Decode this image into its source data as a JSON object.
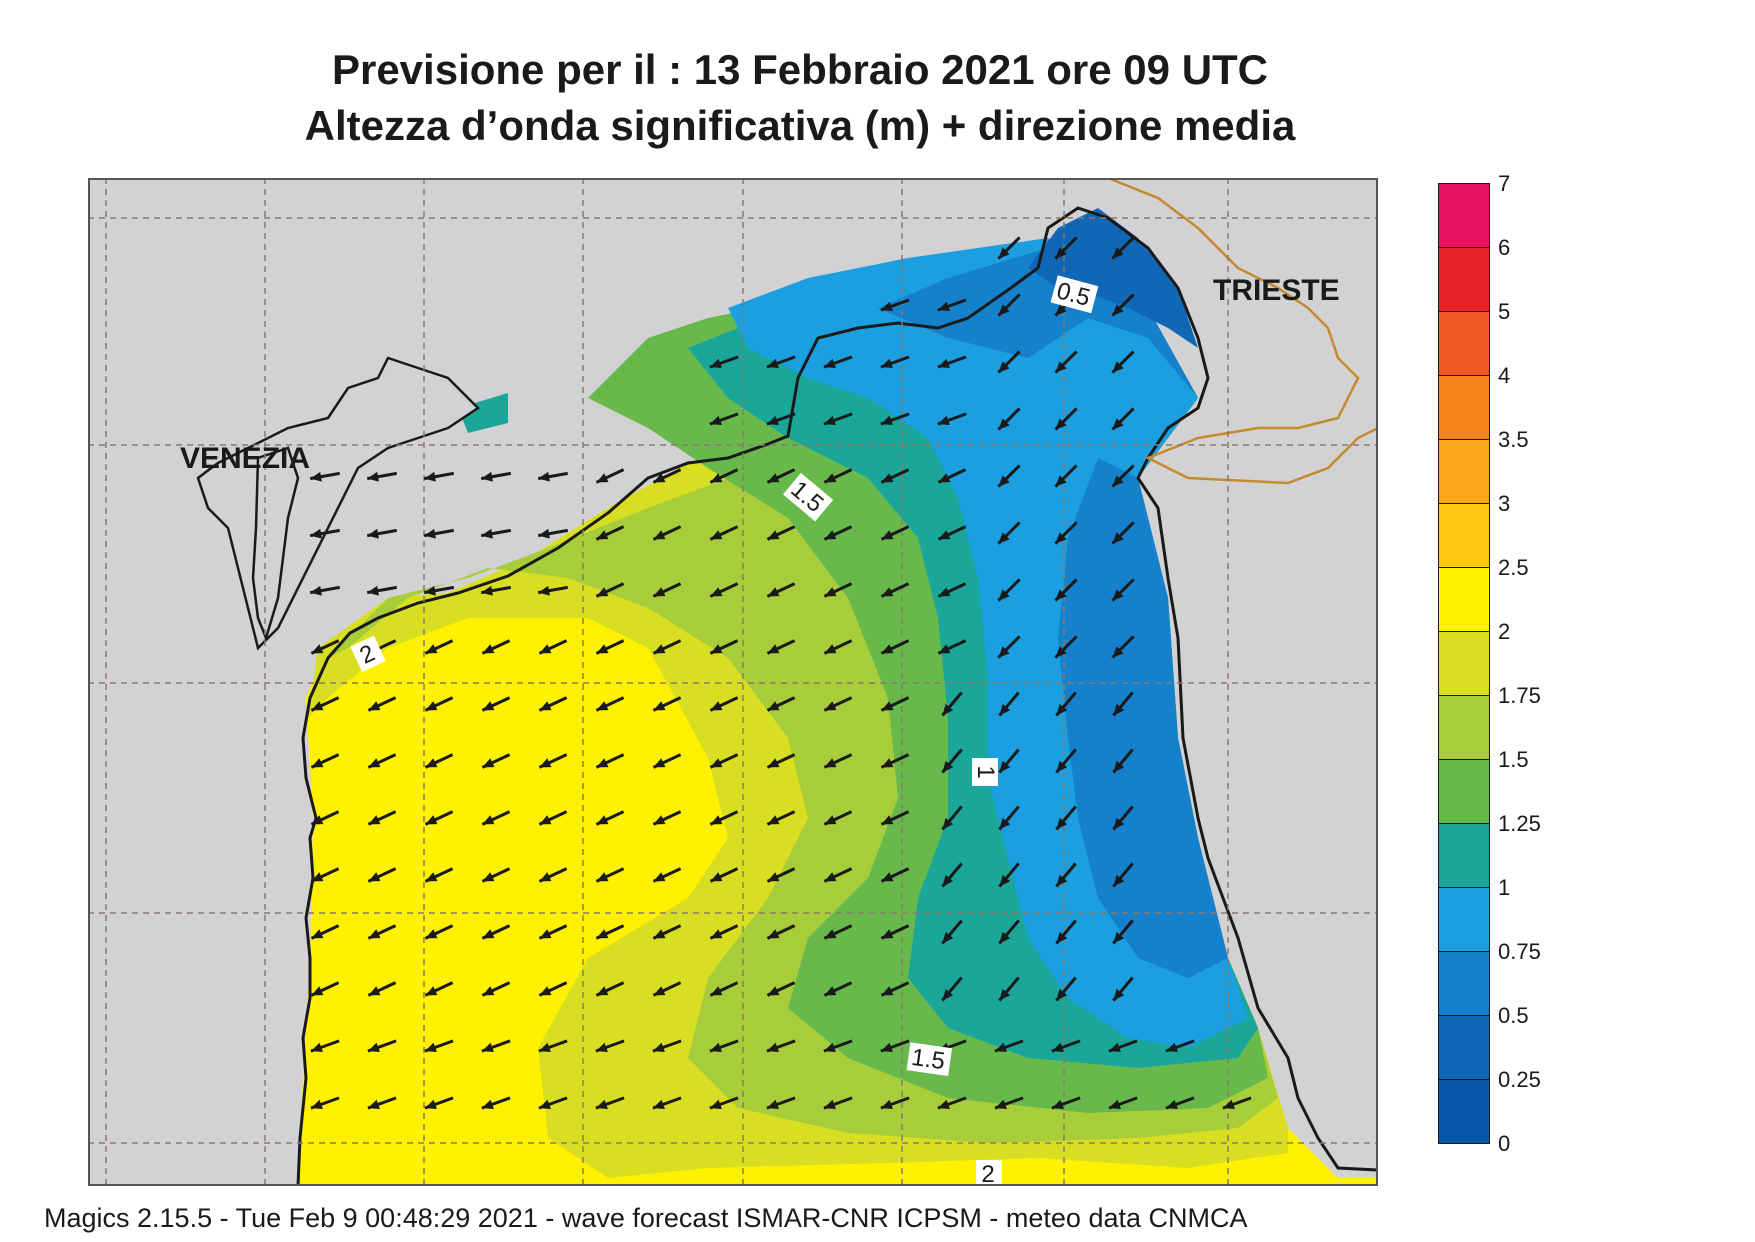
{
  "title": {
    "line1": "Previsione per il  :  13  Febbraio 2021   ore 09 UTC",
    "line2": "Altezza d’onda significativa (m) + direzione media"
  },
  "map": {
    "labels": {
      "venezia": "VENEZIA",
      "trieste": "TRIESTE"
    },
    "contour_labels": [
      "0.5",
      "1.5",
      "1",
      "2",
      "1.5",
      "2"
    ],
    "colors": {
      "land": "#d2d2d4",
      "grid": "#8a7a6a",
      "border": "#c58a2a",
      "coast": "#1a1a1a"
    }
  },
  "legend": {
    "ticks": [
      "7",
      "6",
      "5",
      "4",
      "3.5",
      "3",
      "2.5",
      "2",
      "1.75",
      "1.5",
      "1.25",
      "1",
      "0.75",
      "0.5",
      "0.25",
      "0"
    ],
    "colors": [
      "#e8115d",
      "#e8222b",
      "#ee5a23",
      "#f7841f",
      "#fba71c",
      "#fcc70f",
      "#fff100",
      "#d8df22",
      "#a8cd3a",
      "#68b94c",
      "#1aa79a",
      "#1b9fe0",
      "#1581cc",
      "#0f67b5",
      "#0a55a7"
    ]
  },
  "footer": {
    "text": "Magics 2.15.5 - Tue Feb  9 00:48:29 2021 - wave forecast  ISMAR-CNR  ICPSM - meteo data   CNMCA"
  }
}
